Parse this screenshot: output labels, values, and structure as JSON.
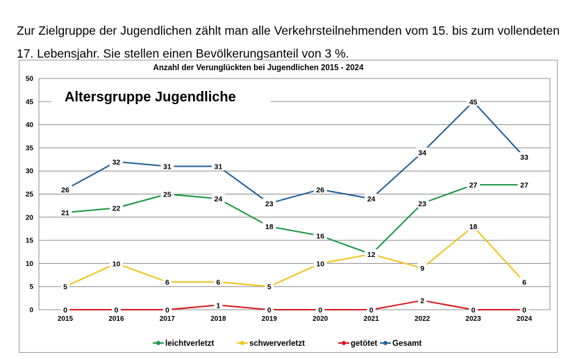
{
  "intro": {
    "line1": "Zur Zielgruppe der Jugendlichen zählt man alle Verkehrsteilnehmenden vom 15. bis zum vollendeten 17. Lebensjahr. Sie stellen einen Bevölkerungsanteil von 3 %."
  },
  "chart_data": {
    "type": "line",
    "title": "Anzahl der Verunglückten bei Jugendlichen 2015 - 2024",
    "subtitle": "Altersgruppe Jugendliche",
    "xlabel": "",
    "ylabel": "",
    "x": [
      "2015",
      "2016",
      "2017",
      "2018",
      "2019",
      "2020",
      "2021",
      "2022",
      "2023",
      "2024"
    ],
    "ylim": [
      0,
      50
    ],
    "yticks": [
      0,
      5,
      10,
      15,
      20,
      25,
      30,
      35,
      40,
      45,
      50
    ],
    "grid": true,
    "legend_position": "bottom",
    "series": [
      {
        "name": "leichtverletzt",
        "color": "#1a9641",
        "values": [
          21,
          22,
          25,
          24,
          18,
          16,
          12,
          23,
          27,
          27
        ]
      },
      {
        "name": "schwerverletzt",
        "color": "#f2c21b",
        "values": [
          5,
          10,
          6,
          6,
          5,
          10,
          12,
          9,
          18,
          6
        ]
      },
      {
        "name": "getötet",
        "color": "#d7191c",
        "values": [
          0,
          0,
          0,
          1,
          0,
          0,
          0,
          2,
          0,
          0
        ]
      },
      {
        "name": "Gesamt",
        "color": "#1f5f96",
        "values": [
          26,
          32,
          31,
          31,
          23,
          26,
          24,
          34,
          45,
          33
        ]
      }
    ]
  }
}
